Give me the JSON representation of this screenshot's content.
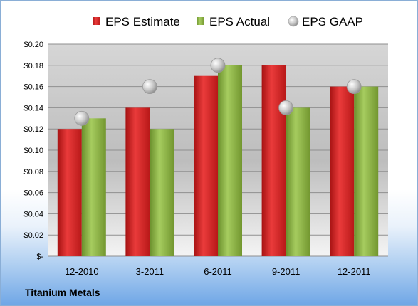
{
  "company": "Titanium Metals",
  "colors": {
    "estimate": "#d42a2a",
    "actual": "#8db34a",
    "gaap": "#c9c9c9"
  },
  "chart_data": {
    "type": "bar",
    "title": "",
    "xlabel": "",
    "ylabel": "",
    "categories": [
      "12-2010",
      "3-2011",
      "6-2011",
      "9-2011",
      "12-2011"
    ],
    "series": [
      {
        "name": "EPS Estimate",
        "kind": "bar",
        "values": [
          0.12,
          0.14,
          0.17,
          0.18,
          0.16
        ]
      },
      {
        "name": "EPS Actual",
        "kind": "bar",
        "values": [
          0.13,
          0.12,
          0.18,
          0.14,
          0.16
        ]
      },
      {
        "name": "EPS GAAP",
        "kind": "marker",
        "values": [
          0.13,
          0.16,
          0.18,
          0.14,
          0.16
        ]
      }
    ],
    "ylim": [
      0,
      0.2
    ],
    "yticks": [
      0,
      0.02,
      0.04,
      0.06,
      0.08,
      0.1,
      0.12,
      0.14,
      0.16,
      0.18,
      0.2
    ],
    "ytick_labels": [
      "$-",
      "$0.02",
      "$0.04",
      "$0.06",
      "$0.08",
      "$0.10",
      "$0.12",
      "$0.14",
      "$0.16",
      "$0.18",
      "$0.20"
    ],
    "grid": true,
    "legend": "top"
  }
}
